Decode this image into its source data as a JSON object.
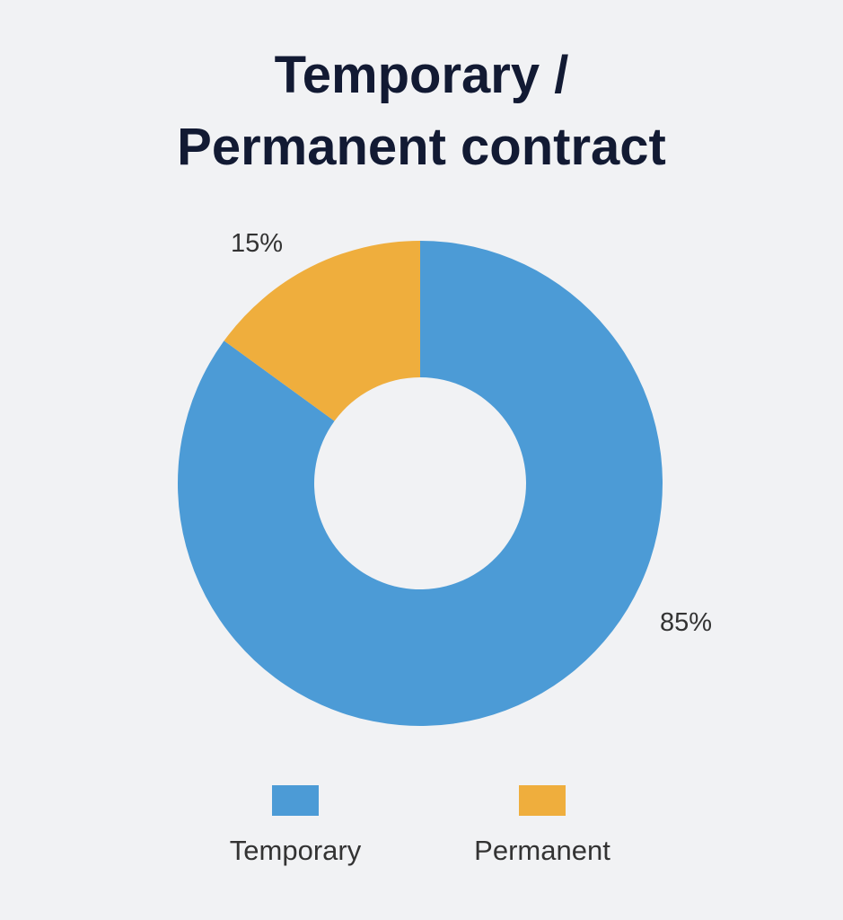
{
  "title_lines": [
    "Temporary /",
    "Permanent contract"
  ],
  "chart_data": {
    "type": "pie",
    "title": "Temporary / Permanent contract",
    "variant": "donut",
    "start_angle_deg": 0,
    "direction": "clockwise",
    "series": [
      {
        "name": "Temporary",
        "value": 85,
        "label": "85%",
        "color": "#4c9bd6"
      },
      {
        "name": "Permanent",
        "value": 15,
        "label": "15%",
        "color": "#efae3d"
      }
    ],
    "legend": {
      "position": "bottom",
      "items": [
        {
          "label": "Temporary",
          "color": "#4c9bd6"
        },
        {
          "label": "Permanent",
          "color": "#efae3d"
        }
      ]
    }
  }
}
